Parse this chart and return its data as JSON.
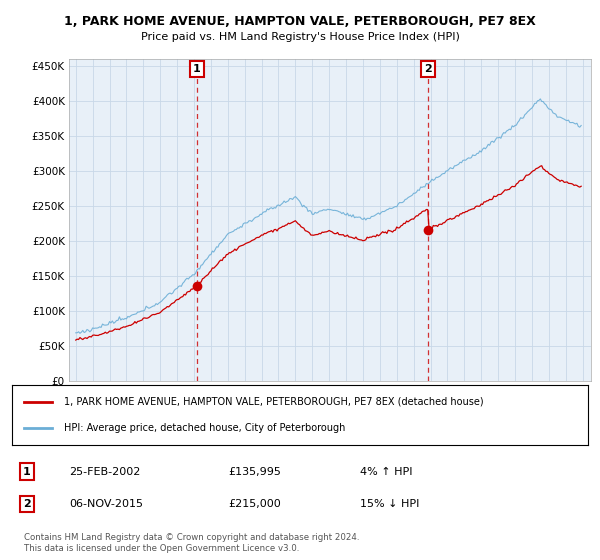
{
  "title": "1, PARK HOME AVENUE, HAMPTON VALE, PETERBOROUGH, PE7 8EX",
  "subtitle": "Price paid vs. HM Land Registry's House Price Index (HPI)",
  "ylim": [
    0,
    460000
  ],
  "yticks": [
    0,
    50000,
    100000,
    150000,
    200000,
    250000,
    300000,
    350000,
    400000,
    450000
  ],
  "ytick_labels": [
    "£0",
    "£50K",
    "£100K",
    "£150K",
    "£200K",
    "£250K",
    "£300K",
    "£350K",
    "£400K",
    "£450K"
  ],
  "hpi_color": "#6baed6",
  "price_color": "#cc0000",
  "chart_bg": "#e8f0f8",
  "marker1_year": 2002.15,
  "marker1_price": 135995,
  "marker2_year": 2015.85,
  "marker2_price": 215000,
  "legend_label_red": "1, PARK HOME AVENUE, HAMPTON VALE, PETERBOROUGH, PE7 8EX (detached house)",
  "legend_label_blue": "HPI: Average price, detached house, City of Peterborough",
  "annotation1_date": "25-FEB-2002",
  "annotation1_price": "£135,995",
  "annotation1_hpi": "4% ↑ HPI",
  "annotation2_date": "06-NOV-2015",
  "annotation2_price": "£215,000",
  "annotation2_hpi": "15% ↓ HPI",
  "footer": "Contains HM Land Registry data © Crown copyright and database right 2024.\nThis data is licensed under the Open Government Licence v3.0.",
  "bg_color": "#ffffff",
  "grid_color": "#c8d8e8"
}
